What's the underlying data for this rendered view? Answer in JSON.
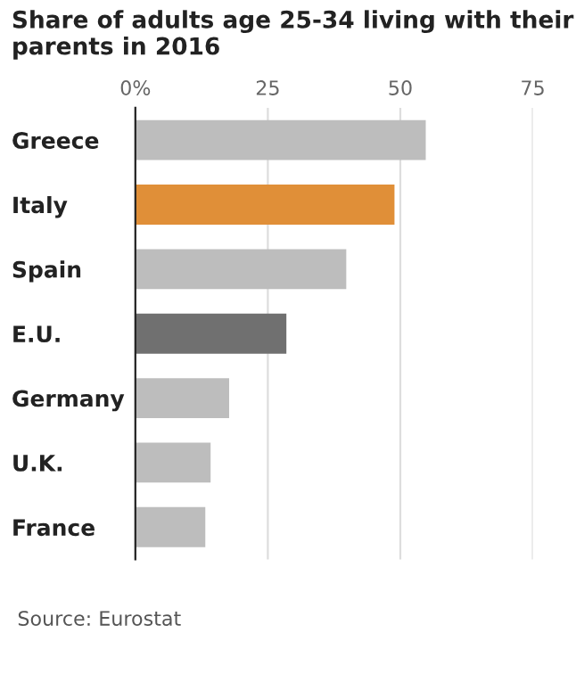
{
  "chart_data": {
    "type": "bar",
    "orientation": "horizontal",
    "title": "Share of adults age 25-34 living with their parents in 2016",
    "categories": [
      "Greece",
      "Italy",
      "Spain",
      "E.U.",
      "Germany",
      "U.K.",
      "France"
    ],
    "values": [
      54.8,
      48.9,
      39.8,
      28.5,
      17.7,
      14.2,
      13.2
    ],
    "colors": [
      "#bdbdbd",
      "#e08f38",
      "#bdbdbd",
      "#707070",
      "#bdbdbd",
      "#bdbdbd",
      "#bdbdbd"
    ],
    "xlim": [
      0,
      75
    ],
    "xticks": [
      {
        "value": 0,
        "label": "0%"
      },
      25,
      50,
      75
    ],
    "grid": "x",
    "annotations": [
      "Source: Eurostat"
    ]
  }
}
